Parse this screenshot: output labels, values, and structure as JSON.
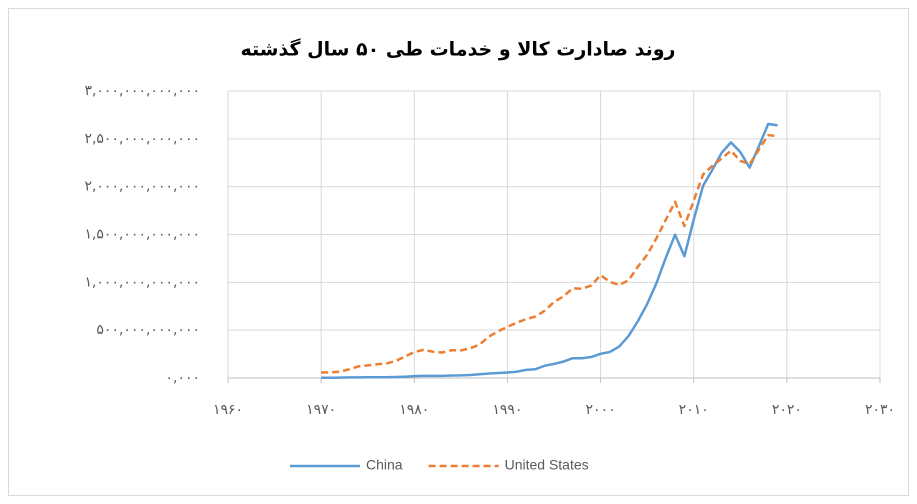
{
  "chart_data": {
    "type": "line",
    "title": "روند صادارت کالا و خدمات طی ۵۰ سال گذشته",
    "x": [
      1970,
      1971,
      1972,
      1973,
      1974,
      1975,
      1976,
      1977,
      1978,
      1979,
      1980,
      1981,
      1982,
      1983,
      1984,
      1985,
      1986,
      1987,
      1988,
      1989,
      1990,
      1991,
      1992,
      1993,
      1994,
      1995,
      1996,
      1997,
      1998,
      1999,
      2000,
      2001,
      2002,
      2003,
      2004,
      2005,
      2006,
      2007,
      2008,
      2009,
      2010,
      2011,
      2012,
      2013,
      2014,
      2015,
      2016,
      2017,
      2018,
      2019
    ],
    "series": [
      {
        "name": "China",
        "color": "#5b9bd5",
        "dash": false,
        "values": [
          2600000000.0,
          3000000000.0,
          3700000000.0,
          5900000000.0,
          7100000000.0,
          7700000000.0,
          7300000000.0,
          8000000000.0,
          10000000000.0,
          13700000000.0,
          19000000000.0,
          22000000000.0,
          22300000000.0,
          22200000000.0,
          26100000000.0,
          27400000000.0,
          31300000000.0,
          39400000000.0,
          47500000000.0,
          52500000000.0,
          57000000000.0,
          66000000000.0,
          85000000000.0,
          92000000000.0,
          128000000000.0,
          147000000000.0,
          171000000000.0,
          207000000000.0,
          207000000000.0,
          219000000000.0,
          253000000000.0,
          272000000000.0,
          329000000000.0,
          438000000000.0,
          593000000000.0,
          773000000000.0,
          991000000000.0,
          1256000000000.0,
          1498000000000.0,
          1272000000000.0,
          1655000000000.0,
          2008000000000.0,
          2175000000000.0,
          2354000000000.0,
          2463000000000.0,
          2362000000000.0,
          2199000000000.0,
          2424000000000.0,
          2656000000000.0,
          2641000000000.0
        ]
      },
      {
        "name": "United States",
        "color": "#ed7d31",
        "dash": true,
        "values": [
          57000000000.0,
          59000000000.0,
          66000000000.0,
          91000000000.0,
          121000000000.0,
          132000000000.0,
          143000000000.0,
          152000000000.0,
          178000000000.0,
          224000000000.0,
          272000000000.0,
          294000000000.0,
          275000000000.0,
          266000000000.0,
          290000000000.0,
          289000000000.0,
          310000000000.0,
          349000000000.0,
          432000000000.0,
          488000000000.0,
          535000000000.0,
          578000000000.0,
          616000000000.0,
          642000000000.0,
          703000000000.0,
          795000000000.0,
          852000000000.0,
          937000000000.0,
          933000000000.0,
          967000000000.0,
          1075000000000.0,
          1005000000000.0,
          972000000000.0,
          1021000000000.0,
          1163000000000.0,
          1288000000000.0,
          1461000000000.0,
          1653000000000.0,
          1842000000000.0,
          1588000000000.0,
          1853000000000.0,
          2127000000000.0,
          2218000000000.0,
          2294000000000.0,
          2377000000000.0,
          2270000000000.0,
          2235000000000.0,
          2388000000000.0,
          2539000000000.0,
          2528000000000.0
        ]
      }
    ],
    "xlim": [
      1960,
      2030
    ],
    "xticks": [
      {
        "value": 1960,
        "label": "۱۹۶۰"
      },
      {
        "value": 1970,
        "label": "۱۹۷۰"
      },
      {
        "value": 1980,
        "label": "۱۹۸۰"
      },
      {
        "value": 1990,
        "label": "۱۹۹۰"
      },
      {
        "value": 2000,
        "label": "۲۰۰۰"
      },
      {
        "value": 2010,
        "label": "۲۰۱۰"
      },
      {
        "value": 2020,
        "label": "۲۰۲۰"
      },
      {
        "value": 2030,
        "label": "۲۰۳۰"
      }
    ],
    "ylim": [
      0,
      3000000000000.0
    ],
    "yticks": [
      {
        "value": 0,
        "label": "۰,۰۰۰"
      },
      {
        "value": 500000000000.0,
        "label": "۵۰۰,۰۰۰,۰۰۰,۰۰۰"
      },
      {
        "value": 1000000000000.0,
        "label": "۱,۰۰۰,۰۰۰,۰۰۰,۰۰۰"
      },
      {
        "value": 1500000000000.0,
        "label": "۱,۵۰۰,۰۰۰,۰۰۰,۰۰۰"
      },
      {
        "value": 2000000000000.0,
        "label": "۲,۰۰۰,۰۰۰,۰۰۰,۰۰۰"
      },
      {
        "value": 2500000000000.0,
        "label": "۲,۵۰۰,۰۰۰,۰۰۰,۰۰۰"
      },
      {
        "value": 3000000000000.0,
        "label": "۳,۰۰۰,۰۰۰,۰۰۰,۰۰۰"
      }
    ],
    "grid": true,
    "legend": "bottom"
  }
}
